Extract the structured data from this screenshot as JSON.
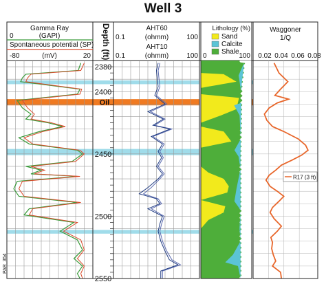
{
  "chart": {
    "title": "Well 3",
    "watermark": "PAR_354"
  },
  "chart_data": {
    "type": "line",
    "title": "Well 3",
    "depth_axis": {
      "label": "Depth (ft)",
      "min": 2375,
      "max": 2550,
      "ticks": [
        2380,
        2400,
        2450,
        2500,
        2550
      ]
    },
    "tracks": [
      {
        "name": "gamma-sp",
        "curves": [
          {
            "label": "Gamma Ray",
            "unit": "(GAPI)",
            "scale_min_label": "0",
            "scale_max_label": "",
            "color": "#3a9a3a"
          },
          {
            "label": "Spontaneous potential (SP)",
            "unit": "(mV)",
            "scale_min_label": "-80",
            "scale_max_label": "20",
            "color": "#d94a2a"
          }
        ],
        "gamma_ray": [
          [
            2377,
            0.86
          ],
          [
            2383,
            0.83
          ],
          [
            2386,
            0.22
          ],
          [
            2389,
            0.18
          ],
          [
            2392,
            0.16
          ],
          [
            2398,
            0.85
          ],
          [
            2402,
            0.82
          ],
          [
            2407,
            0.12
          ],
          [
            2413,
            0.18
          ],
          [
            2418,
            0.28
          ],
          [
            2422,
            0.22
          ],
          [
            2425,
            0.48
          ],
          [
            2428,
            0.65
          ],
          [
            2432,
            0.38
          ],
          [
            2437,
            0.14
          ],
          [
            2442,
            0.26
          ],
          [
            2447,
            0.82
          ],
          [
            2450,
            0.88
          ],
          [
            2456,
            0.76
          ],
          [
            2460,
            0.22
          ],
          [
            2463,
            0.4
          ],
          [
            2466,
            0.28
          ],
          [
            2468,
            0.82
          ],
          [
            2472,
            0.12
          ],
          [
            2478,
            0.08
          ],
          [
            2484,
            0.14
          ],
          [
            2489,
            0.82
          ],
          [
            2494,
            0.26
          ],
          [
            2499,
            0.2
          ],
          [
            2505,
            0.78
          ],
          [
            2512,
            0.62
          ],
          [
            2519,
            0.82
          ],
          [
            2527,
            0.88
          ],
          [
            2534,
            0.78
          ],
          [
            2540,
            0.88
          ],
          [
            2546,
            0.82
          ],
          [
            2550,
            0.85
          ]
        ],
        "sp": [
          [
            2377,
            0.9
          ],
          [
            2383,
            0.86
          ],
          [
            2386,
            0.28
          ],
          [
            2389,
            0.24
          ],
          [
            2392,
            0.22
          ],
          [
            2398,
            0.87
          ],
          [
            2402,
            0.85
          ],
          [
            2407,
            0.18
          ],
          [
            2413,
            0.24
          ],
          [
            2418,
            0.32
          ],
          [
            2422,
            0.28
          ],
          [
            2425,
            0.52
          ],
          [
            2428,
            0.68
          ],
          [
            2432,
            0.42
          ],
          [
            2437,
            0.2
          ],
          [
            2442,
            0.3
          ],
          [
            2447,
            0.85
          ],
          [
            2450,
            0.9
          ],
          [
            2456,
            0.8
          ],
          [
            2460,
            0.28
          ],
          [
            2463,
            0.44
          ],
          [
            2466,
            0.32
          ],
          [
            2468,
            0.85
          ],
          [
            2472,
            0.18
          ],
          [
            2478,
            0.14
          ],
          [
            2484,
            0.2
          ],
          [
            2489,
            0.86
          ],
          [
            2494,
            0.3
          ],
          [
            2499,
            0.26
          ],
          [
            2505,
            0.82
          ],
          [
            2512,
            0.66
          ],
          [
            2519,
            0.86
          ],
          [
            2527,
            0.9
          ],
          [
            2534,
            0.82
          ],
          [
            2540,
            0.9
          ],
          [
            2546,
            0.86
          ],
          [
            2550,
            0.88
          ]
        ]
      },
      {
        "name": "resistivity",
        "curves": [
          {
            "label": "AHT60",
            "unit": "(ohmm)",
            "scale_min_label": "0.1",
            "scale_max_label": "100",
            "color": "#1e3a80"
          },
          {
            "label": "AHT10",
            "unit": "(ohmm)",
            "scale_min_label": "0.1",
            "scale_max_label": "100",
            "color": "#5a6ab0"
          }
        ],
        "aht60": [
          [
            2377,
            0.52
          ],
          [
            2383,
            0.5
          ],
          [
            2390,
            0.51
          ],
          [
            2396,
            0.52
          ],
          [
            2403,
            0.48
          ],
          [
            2410,
            0.6
          ],
          [
            2416,
            0.4
          ],
          [
            2422,
            0.58
          ],
          [
            2427,
            0.46
          ],
          [
            2430,
            0.66
          ],
          [
            2436,
            0.44
          ],
          [
            2442,
            0.57
          ],
          [
            2448,
            0.52
          ],
          [
            2453,
            0.56
          ],
          [
            2460,
            0.5
          ],
          [
            2466,
            0.57
          ],
          [
            2470,
            0.52
          ],
          [
            2477,
            0.4
          ],
          [
            2482,
            0.3
          ],
          [
            2486,
            0.5
          ],
          [
            2490,
            0.54
          ],
          [
            2494,
            0.4
          ],
          [
            2500,
            0.57
          ],
          [
            2506,
            0.54
          ],
          [
            2512,
            0.52
          ],
          [
            2520,
            0.55
          ],
          [
            2528,
            0.6
          ],
          [
            2535,
            0.65
          ],
          [
            2539,
            0.75
          ],
          [
            2544,
            0.55
          ],
          [
            2550,
            0.55
          ]
        ],
        "aht10": [
          [
            2377,
            0.54
          ],
          [
            2383,
            0.52
          ],
          [
            2390,
            0.53
          ],
          [
            2396,
            0.54
          ],
          [
            2403,
            0.5
          ],
          [
            2410,
            0.62
          ],
          [
            2416,
            0.43
          ],
          [
            2422,
            0.6
          ],
          [
            2427,
            0.48
          ],
          [
            2430,
            0.68
          ],
          [
            2436,
            0.46
          ],
          [
            2442,
            0.59
          ],
          [
            2448,
            0.54
          ],
          [
            2453,
            0.58
          ],
          [
            2460,
            0.52
          ],
          [
            2466,
            0.59
          ],
          [
            2470,
            0.54
          ],
          [
            2477,
            0.44
          ],
          [
            2482,
            0.35
          ],
          [
            2486,
            0.52
          ],
          [
            2490,
            0.56
          ],
          [
            2494,
            0.44
          ],
          [
            2500,
            0.59
          ],
          [
            2506,
            0.56
          ],
          [
            2512,
            0.54
          ],
          [
            2520,
            0.57
          ],
          [
            2528,
            0.62
          ],
          [
            2535,
            0.68
          ],
          [
            2539,
            0.78
          ],
          [
            2544,
            0.57
          ],
          [
            2550,
            0.57
          ]
        ]
      },
      {
        "name": "lithology",
        "header": "Lithology (%)",
        "scale_min_label": "0",
        "scale_max_label": "100",
        "legend": [
          {
            "label": "Sand",
            "color": "#f2ea1c"
          },
          {
            "label": "Calcite",
            "color": "#5bc4d6"
          },
          {
            "label": "Shale",
            "color": "#4eae3a"
          }
        ],
        "sand": [
          [
            2377,
            0
          ],
          [
            2385,
            0
          ],
          [
            2386,
            45
          ],
          [
            2392,
            70
          ],
          [
            2397,
            0
          ],
          [
            2402,
            0
          ],
          [
            2405,
            75
          ],
          [
            2414,
            70
          ],
          [
            2419,
            40
          ],
          [
            2425,
            0
          ],
          [
            2428,
            0
          ],
          [
            2432,
            45
          ],
          [
            2440,
            60
          ],
          [
            2445,
            0
          ],
          [
            2455,
            0
          ],
          [
            2460,
            0
          ],
          [
            2465,
            15
          ],
          [
            2470,
            45
          ],
          [
            2476,
            55
          ],
          [
            2481,
            52
          ],
          [
            2487,
            0
          ],
          [
            2492,
            48
          ],
          [
            2497,
            45
          ],
          [
            2503,
            15
          ],
          [
            2510,
            0
          ],
          [
            2550,
            0
          ]
        ],
        "calcite": [
          [
            2377,
            0
          ],
          [
            2383,
            5
          ],
          [
            2387,
            8
          ],
          [
            2393,
            4
          ],
          [
            2400,
            0
          ],
          [
            2409,
            0
          ],
          [
            2411,
            14
          ],
          [
            2419,
            3
          ],
          [
            2438,
            0
          ],
          [
            2447,
            12
          ],
          [
            2452,
            4
          ],
          [
            2462,
            0
          ],
          [
            2470,
            4
          ],
          [
            2478,
            8
          ],
          [
            2488,
            12
          ],
          [
            2495,
            0
          ],
          [
            2510,
            2
          ],
          [
            2520,
            0
          ],
          [
            2531,
            15
          ],
          [
            2537,
            30
          ],
          [
            2540,
            5
          ],
          [
            2550,
            0
          ]
        ],
        "shale_fraction": [
          [
            2377,
            0.85
          ],
          [
            2395,
            0.8
          ],
          [
            2450,
            0.78
          ],
          [
            2550,
            0.78
          ]
        ]
      },
      {
        "name": "waggoner",
        "header": "Waggoner",
        "unit": "1/Q",
        "ticks": [
          "0.02",
          "0.04",
          "0.06",
          "0.08"
        ],
        "legend_label": "R17 (3 ft)",
        "color": "#e8662a",
        "values": [
          [
            2377,
            0.036
          ],
          [
            2385,
            0.042
          ],
          [
            2392,
            0.053
          ],
          [
            2398,
            0.044
          ],
          [
            2403,
            0.037
          ],
          [
            2406,
            0.054
          ],
          [
            2409,
            0.04
          ],
          [
            2413,
            0.03
          ],
          [
            2418,
            0.024
          ],
          [
            2423,
            0.027
          ],
          [
            2428,
            0.034
          ],
          [
            2432,
            0.048
          ],
          [
            2438,
            0.066
          ],
          [
            2443,
            0.075
          ],
          [
            2447,
            0.078
          ],
          [
            2451,
            0.07
          ],
          [
            2455,
            0.058
          ],
          [
            2459,
            0.045
          ],
          [
            2463,
            0.038
          ],
          [
            2467,
            0.03
          ],
          [
            2471,
            0.026
          ],
          [
            2476,
            0.031
          ],
          [
            2480,
            0.04
          ],
          [
            2484,
            0.048
          ],
          [
            2488,
            0.042
          ],
          [
            2493,
            0.034
          ],
          [
            2497,
            0.031
          ],
          [
            2502,
            0.036
          ],
          [
            2508,
            0.045
          ],
          [
            2512,
            0.04
          ],
          [
            2517,
            0.032
          ],
          [
            2521,
            0.034
          ],
          [
            2526,
            0.033
          ],
          [
            2531,
            0.035
          ],
          [
            2536,
            0.038
          ],
          [
            2540,
            0.034
          ],
          [
            2545,
            0.044
          ],
          [
            2550,
            0.045
          ]
        ]
      }
    ],
    "bands": [
      {
        "type": "calcite",
        "top": 2391,
        "bottom": 2394,
        "color": "#8fd6e6"
      },
      {
        "type": "oil",
        "top": 2406,
        "bottom": 2411,
        "color": "#f07a21",
        "label": "Oil"
      },
      {
        "type": "calcite",
        "top": 2446,
        "bottom": 2451,
        "color": "#8fd6e6"
      },
      {
        "type": "calcite",
        "top": 2511,
        "bottom": 2514,
        "color": "#8fd6e6"
      }
    ]
  }
}
